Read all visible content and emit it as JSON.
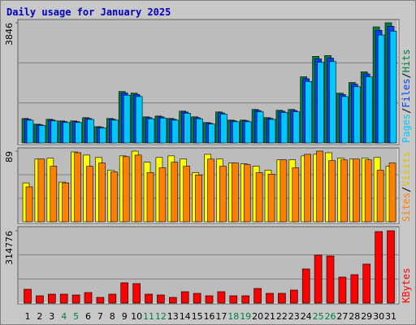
{
  "chart_data": [
    {
      "type": "bar",
      "title": "Daily usage for January 2025",
      "separator": "/",
      "ylim": [
        0,
        3846
      ],
      "yticks": [
        3846
      ],
      "series": [
        {
          "name": "Hits",
          "color": "#008040",
          "values": [
            785,
            602,
            759,
            706,
            706,
            811,
            523,
            785,
            1648,
            1596,
            837,
            863,
            785,
            1020,
            837,
            654,
            994,
            732,
            732,
            1073,
            811,
            1046,
            1073,
            2119,
            2773,
            2799,
            1596,
            1936,
            2276,
            3715,
            3846
          ]
        },
        {
          "name": "Files",
          "color": "#0040ff",
          "values": [
            760,
            585,
            735,
            685,
            685,
            785,
            505,
            760,
            1600,
            1550,
            810,
            835,
            760,
            990,
            810,
            635,
            965,
            710,
            710,
            1040,
            785,
            1015,
            1040,
            2055,
            2690,
            2715,
            1550,
            1880,
            2210,
            3605,
            3730
          ]
        },
        {
          "name": "Pages",
          "color": "#00c8ff",
          "values": [
            730,
            560,
            705,
            655,
            655,
            755,
            485,
            730,
            1530,
            1485,
            775,
            800,
            730,
            950,
            775,
            605,
            925,
            680,
            680,
            1000,
            755,
            975,
            1000,
            1970,
            2580,
            2605,
            1485,
            1800,
            2115,
            3455,
            3575
          ]
        }
      ]
    },
    {
      "type": "bar",
      "separator": "/",
      "ylim": [
        0,
        89
      ],
      "yticks": [
        89
      ],
      "series": [
        {
          "name": "Visits",
          "color": "#ffff00",
          "values": [
            49,
            79,
            80,
            50,
            88,
            84,
            81,
            65,
            83,
            89,
            75,
            81,
            83,
            79,
            62,
            85,
            79,
            74,
            73,
            70,
            65,
            78,
            78,
            83,
            85,
            87,
            80,
            79,
            80,
            81,
            70
          ]
        },
        {
          "name": "Sites",
          "color": "#ff8000",
          "values": [
            44,
            79,
            70,
            49,
            87,
            70,
            74,
            63,
            82,
            84,
            62,
            68,
            75,
            70,
            59,
            79,
            70,
            74,
            72,
            62,
            60,
            78,
            68,
            85,
            89,
            77,
            78,
            79,
            78,
            65,
            74
          ]
        }
      ]
    },
    {
      "type": "bar",
      "ylim": [
        0,
        314776
      ],
      "yticks": [
        314776
      ],
      "categories": [
        "1",
        "2",
        "3",
        "4",
        "5",
        "6",
        "7",
        "8",
        "9",
        "10",
        "11",
        "12",
        "13",
        "14",
        "15",
        "16",
        "17",
        "18",
        "19",
        "20",
        "21",
        "22",
        "23",
        "24",
        "25",
        "26",
        "27",
        "28",
        "29",
        "30",
        "31"
      ],
      "category_colors": [
        "#000000",
        "#000000",
        "#000000",
        "#008040",
        "#008040",
        "#000000",
        "#000000",
        "#000000",
        "#000000",
        "#000000",
        "#008040",
        "#008040",
        "#000000",
        "#000000",
        "#000000",
        "#000000",
        "#000000",
        "#008040",
        "#008040",
        "#000000",
        "#000000",
        "#000000",
        "#000000",
        "#000000",
        "#008040",
        "#008040",
        "#000000",
        "#000000",
        "#000000",
        "#000000",
        "#000000"
      ],
      "series": [
        {
          "name": "KBytes",
          "color": "#ff0000",
          "values": [
            60130,
            31830,
            38900,
            38900,
            35370,
            45980,
            24760,
            38900,
            88420,
            84880,
            38900,
            35370,
            24760,
            49520,
            42440,
            31830,
            49520,
            31830,
            31830,
            63660,
            42440,
            42440,
            56590,
            148550,
            208680,
            205140,
            113180,
            123800,
            169780,
            311250,
            314776
          ]
        }
      ]
    }
  ]
}
